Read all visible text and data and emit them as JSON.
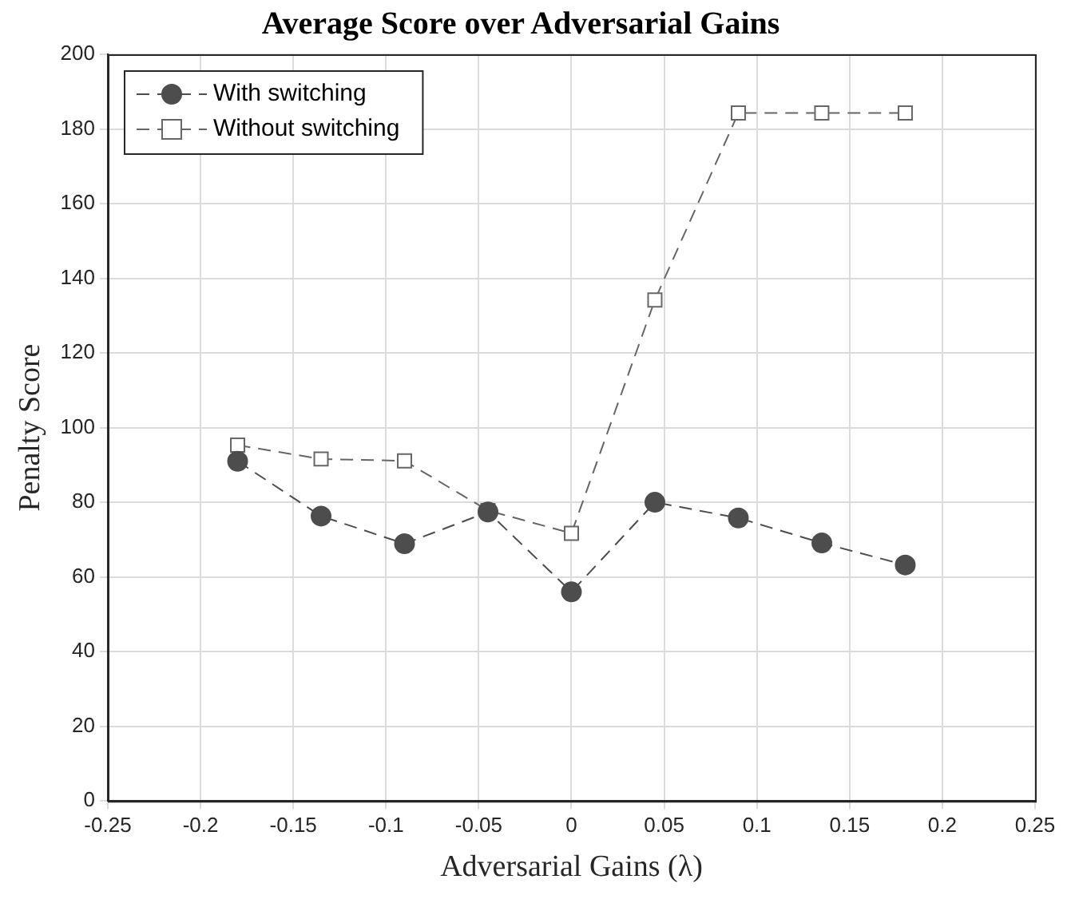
{
  "chart_data": {
    "type": "line",
    "title": "Average Score over Adversarial Gains",
    "xlabel": "Adversarial Gains (λ)",
    "ylabel": "Penalty Score",
    "x": [
      -0.18,
      -0.135,
      -0.09,
      -0.045,
      0,
      0.045,
      0.09,
      0.135,
      0.18
    ],
    "series": [
      {
        "name": "With switching",
        "color": "#4d4d4d",
        "marker": "circle",
        "values": [
          91,
          76.3,
          68.9,
          77.4,
          56,
          80,
          75.8,
          69.1,
          63.2
        ]
      },
      {
        "name": "Without switching",
        "color": "#666666",
        "marker": "square",
        "values": [
          95.3,
          91.6,
          91.1,
          77.8,
          71.7,
          134.2,
          184.3,
          184.3,
          184.3
        ]
      }
    ],
    "xlim": [
      -0.25,
      0.25
    ],
    "xticks": [
      -0.25,
      -0.2,
      -0.15,
      -0.1,
      -0.05,
      0,
      0.05,
      0.1,
      0.15,
      0.2,
      0.25
    ],
    "ylim": [
      0,
      200
    ],
    "yticks": [
      0,
      20,
      40,
      60,
      80,
      100,
      120,
      140,
      160,
      180,
      200
    ],
    "grid": true,
    "legend": "top left",
    "line_style": "dashed"
  }
}
